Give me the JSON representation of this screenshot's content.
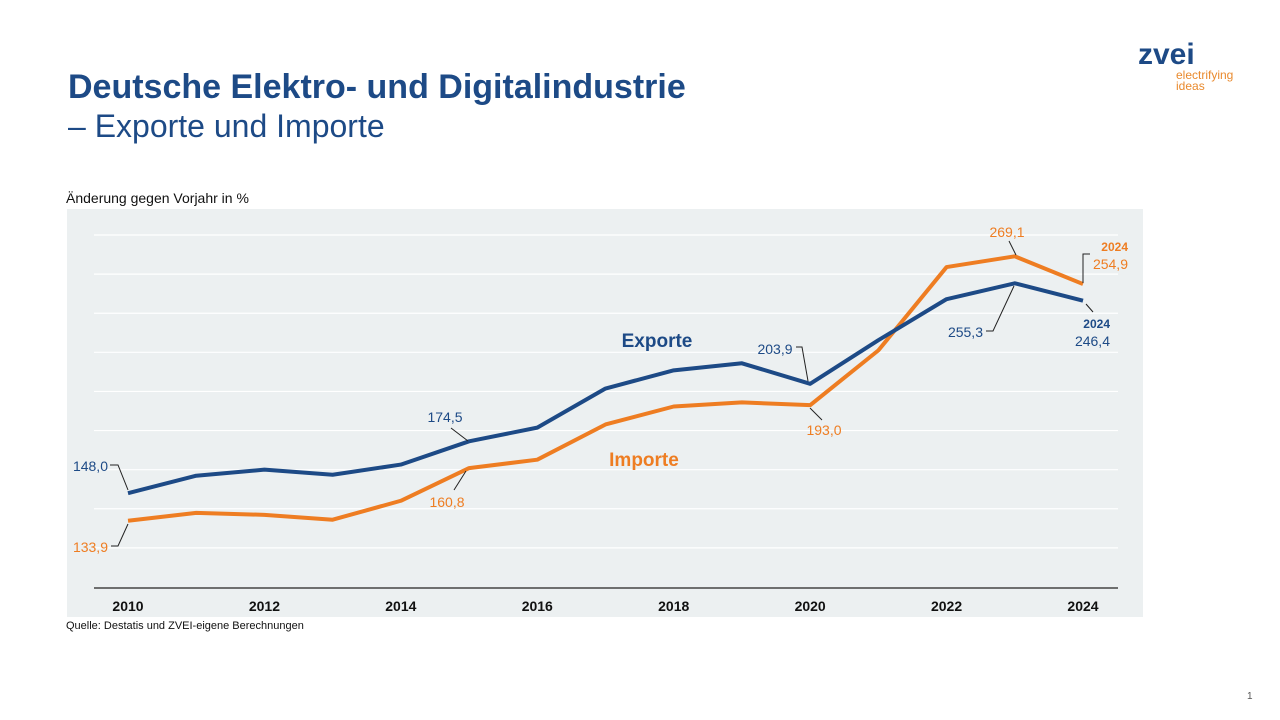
{
  "header": {
    "title_line1": "Deutsche Elektro- und Digitalindustrie",
    "title_line2": "– Exporte und Importe"
  },
  "logo": {
    "wordmark": "zvei",
    "tagline_line1": "electrifying",
    "tagline_line2": "ideas"
  },
  "footer": {
    "source": "Quelle: Destatis und ZVEI-eigene Berechnungen",
    "page_number": "1"
  },
  "colors": {
    "exports": "#1d4a86",
    "imports": "#ee7d22",
    "plot_background": "#ecf0f1"
  },
  "chart_data": {
    "type": "line",
    "title": "",
    "ylabel": "Änderung gegen Vorjahr in %",
    "xlabel": "",
    "x": [
      2010,
      2011,
      2012,
      2013,
      2014,
      2015,
      2016,
      2017,
      2018,
      2019,
      2020,
      2021,
      2022,
      2023,
      2024
    ],
    "xtick_labels": [
      "2010",
      "2012",
      "2014",
      "2016",
      "2018",
      "2020",
      "2022",
      "2024"
    ],
    "ylim": [
      100,
      280
    ],
    "y_gridlines": [
      120,
      140,
      160,
      180,
      200,
      220,
      240,
      260,
      280
    ],
    "grid": true,
    "y_tick_labels_shown": false,
    "series": [
      {
        "name": "Exporte",
        "color": "#1d4a86",
        "values": [
          148.0,
          156.9,
          160.0,
          157.4,
          162.6,
          174.5,
          181.5,
          201.5,
          210.8,
          214.4,
          203.9,
          226.2,
          247.2,
          255.3,
          246.4
        ]
      },
      {
        "name": "Importe",
        "color": "#ee7d22",
        "values": [
          133.9,
          137.9,
          136.9,
          134.4,
          144.1,
          160.8,
          165.1,
          183.1,
          192.3,
          194.4,
          193.0,
          221.0,
          263.6,
          269.1,
          254.9
        ]
      }
    ],
    "annotations": [
      {
        "series": "Exporte",
        "x": 2010,
        "text": "148,0"
      },
      {
        "series": "Importe",
        "x": 2010,
        "text": "133,9"
      },
      {
        "series": "Exporte",
        "x": 2015,
        "text": "174,5"
      },
      {
        "series": "Importe",
        "x": 2015,
        "text": "160,8"
      },
      {
        "series": "Exporte",
        "x": 2020,
        "text": "203,9"
      },
      {
        "series": "Importe",
        "x": 2020,
        "text": "193,0"
      },
      {
        "series": "Importe",
        "x": 2023,
        "text": "269,1"
      },
      {
        "series": "Exporte",
        "x": 2023,
        "text": "255,3"
      },
      {
        "series": "Importe",
        "x": 2024,
        "text": "254,9",
        "year_label": "2024"
      },
      {
        "series": "Exporte",
        "x": 2024,
        "text": "246,4",
        "year_label": "2024"
      }
    ]
  }
}
